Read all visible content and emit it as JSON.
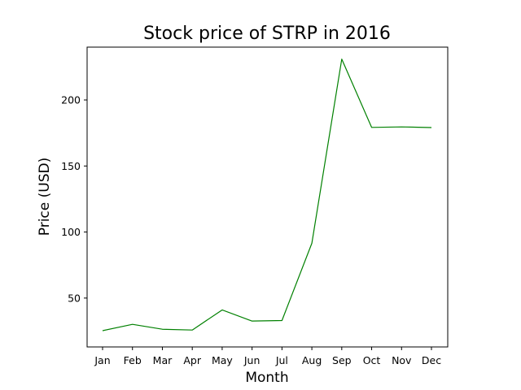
{
  "chart_data": {
    "type": "line",
    "title": "Stock price of STRP in 2016",
    "xlabel": "Month",
    "ylabel": "Price (USD)",
    "categories": [
      "Jan",
      "Feb",
      "Mar",
      "Apr",
      "May",
      "Jun",
      "Jul",
      "Aug",
      "Sep",
      "Oct",
      "Nov",
      "Dec"
    ],
    "series": [
      {
        "values": [
          25.3,
          30.1,
          26.4,
          25.8,
          41.0,
          32.6,
          33.0,
          91.5,
          230.9,
          179.2,
          179.6,
          179.1
        ],
        "color": "#008000"
      }
    ],
    "ylim": [
      13.0,
      240.0
    ],
    "yticks": [
      50,
      100,
      150,
      200
    ],
    "grid": false,
    "legend": "none"
  }
}
